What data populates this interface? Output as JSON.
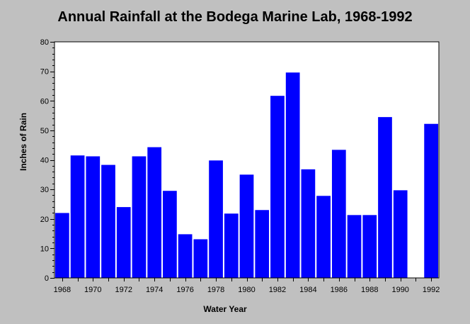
{
  "chart_data": {
    "type": "bar",
    "title": "Annual Rainfall at the Bodega Marine Lab, 1968-1992",
    "xlabel": "Water Year",
    "ylabel": "Inches of Rain",
    "ylim": [
      0,
      80
    ],
    "y_ticks": [
      "0",
      "10",
      "20",
      "30",
      "40",
      "50",
      "60",
      "70",
      "80"
    ],
    "x_ticks": [
      "1968",
      "1970",
      "1972",
      "1974",
      "1976",
      "1978",
      "1980",
      "1982",
      "1984",
      "1986",
      "1988",
      "1990",
      "1992"
    ],
    "categories": [
      1968,
      1969,
      1970,
      1971,
      1972,
      1973,
      1974,
      1975,
      1976,
      1977,
      1978,
      1979,
      1980,
      1981,
      1982,
      1983,
      1984,
      1985,
      1986,
      1987,
      1988,
      1989,
      1990,
      1991,
      1992
    ],
    "values": [
      22,
      41.5,
      41.2,
      38.3,
      24,
      41.2,
      44.3,
      29.5,
      14.8,
      13.1,
      39.8,
      21.8,
      35,
      23,
      61.7,
      69.6,
      36.8,
      27.8,
      43.4,
      21.3,
      21.3,
      54.5,
      29.7,
      null,
      52.2
    ],
    "bar_color": "#0000ff",
    "background_color": "#c0c0c0",
    "plot_background": "#ffffff",
    "grid": false,
    "legend": "none"
  }
}
